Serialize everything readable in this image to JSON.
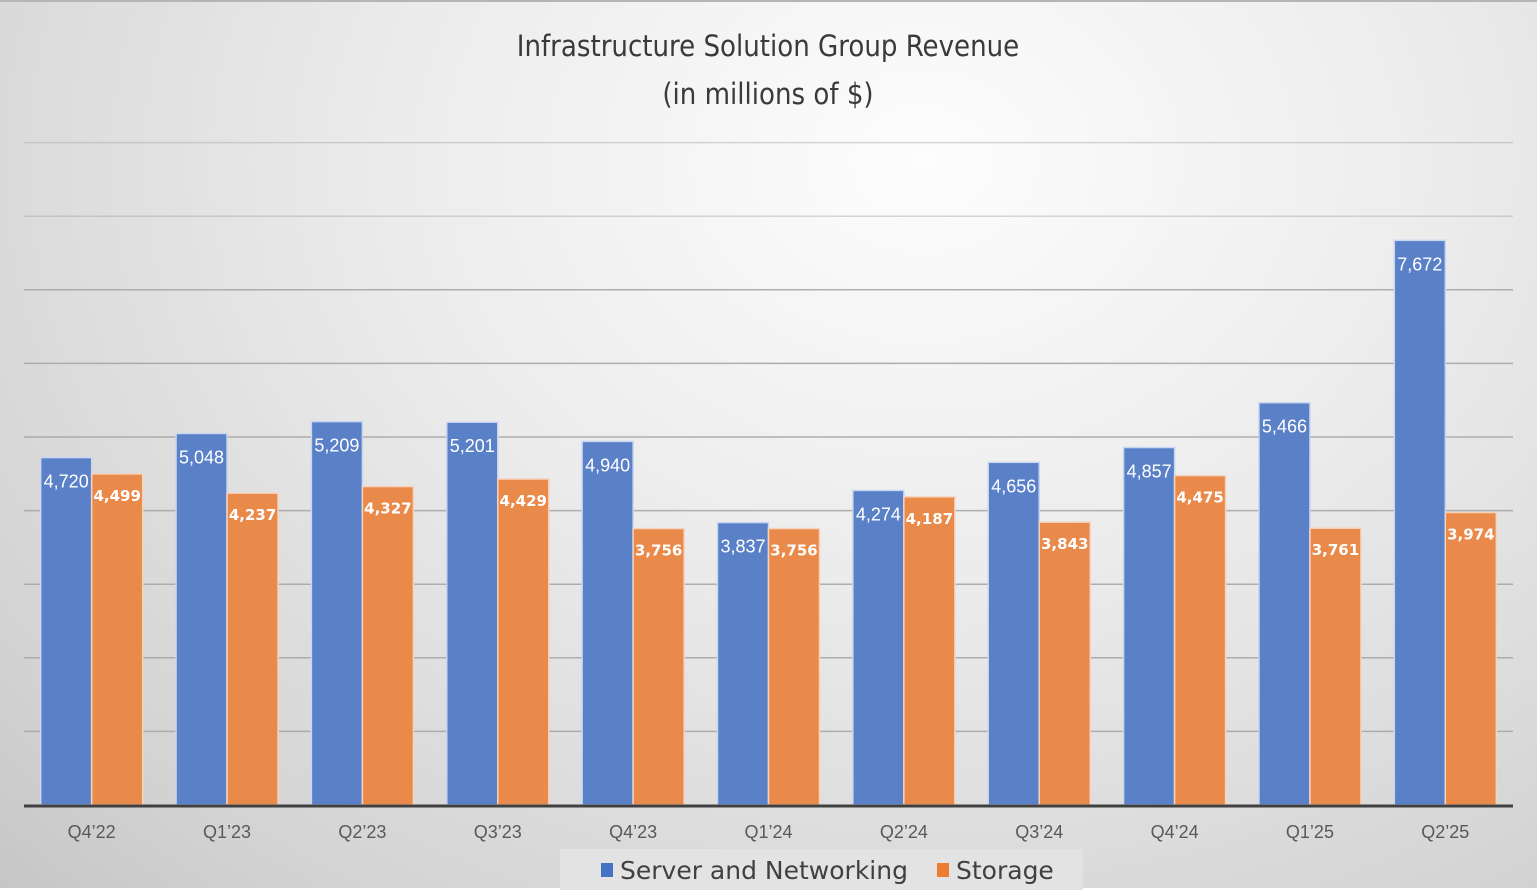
{
  "chart_data": {
    "type": "bar",
    "title": "Infrastructure Solution Group Revenue",
    "subtitle": "(in millions of $)",
    "xlabel": "",
    "ylabel": "",
    "ylim": [
      0,
      9000
    ],
    "grid": true,
    "gridline_step": 1000,
    "legend_position": "bottom",
    "categories": [
      "Q4’22",
      "Q1’23",
      "Q2’23",
      "Q3’23",
      "Q4’23",
      "Q1’24",
      "Q2’24",
      "Q3’24",
      "Q4’24",
      "Q1’25",
      "Q2’25"
    ],
    "series": [
      {
        "name": "Server and Networking",
        "color": "#4472c4",
        "values": [
          4720,
          5048,
          5209,
          5201,
          4940,
          3837,
          4274,
          4656,
          4857,
          5466,
          7672
        ],
        "labels": [
          "4,720",
          "5,048",
          "5,209",
          "5,201",
          "4,940",
          "3,837",
          "4,274",
          "4,656",
          "4,857",
          "5,466",
          "7,672"
        ]
      },
      {
        "name": "Storage",
        "color": "#ed7d31",
        "values": [
          4499,
          4237,
          4327,
          4429,
          3756,
          3756,
          4187,
          3843,
          4475,
          3761,
          3974
        ],
        "labels": [
          "4,499",
          "4,237",
          "4,327",
          "4,429",
          "3,756",
          "3,756",
          "4,187",
          "3,843",
          "4,475",
          "3,761",
          "3,974"
        ]
      }
    ]
  }
}
